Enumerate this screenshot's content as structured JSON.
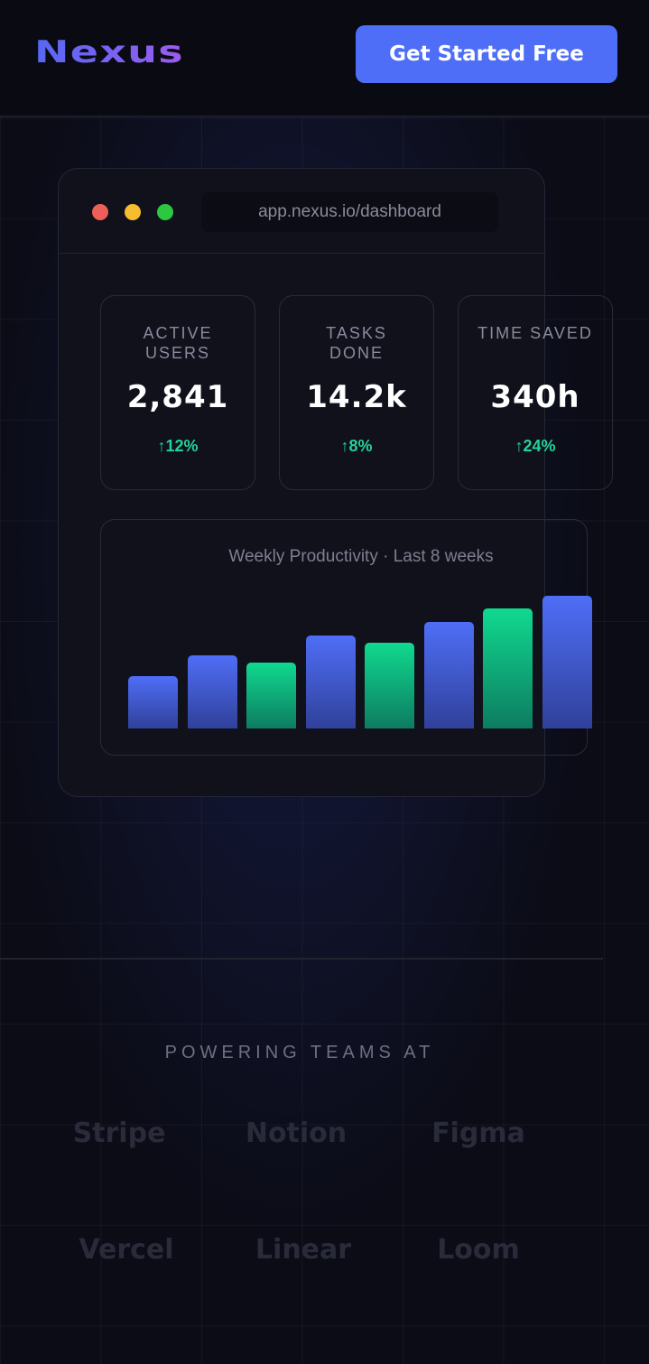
{
  "header": {
    "logo": "Nexus",
    "cta": "Get Started Free"
  },
  "dashboard": {
    "url": "app.nexus.io/dashboard",
    "stats": [
      {
        "label": "ACTIVE USERS",
        "value": "2,841",
        "change": "↑12%"
      },
      {
        "label": "TASKS DONE",
        "value": "14.2k",
        "change": "↑8%"
      },
      {
        "label": "TIME SAVED",
        "value": "340h",
        "change": "↑24%"
      }
    ],
    "chart": {
      "type": "bar",
      "title": "Weekly Productivity · Last 8 weeks",
      "values": [
        58,
        81,
        73,
        103,
        95,
        118,
        133,
        147
      ],
      "colors": [
        "#4f6ef7",
        "#4f6ef7",
        "#10d98f",
        "#4f6ef7",
        "#10d98f",
        "#4f6ef7",
        "#10d98f",
        "#4f6ef7"
      ]
    }
  },
  "logos": {
    "title": "POWERING TEAMS AT",
    "names": [
      "Stripe",
      "Notion",
      "Figma",
      "Vercel",
      "Linear",
      "Loom"
    ]
  }
}
